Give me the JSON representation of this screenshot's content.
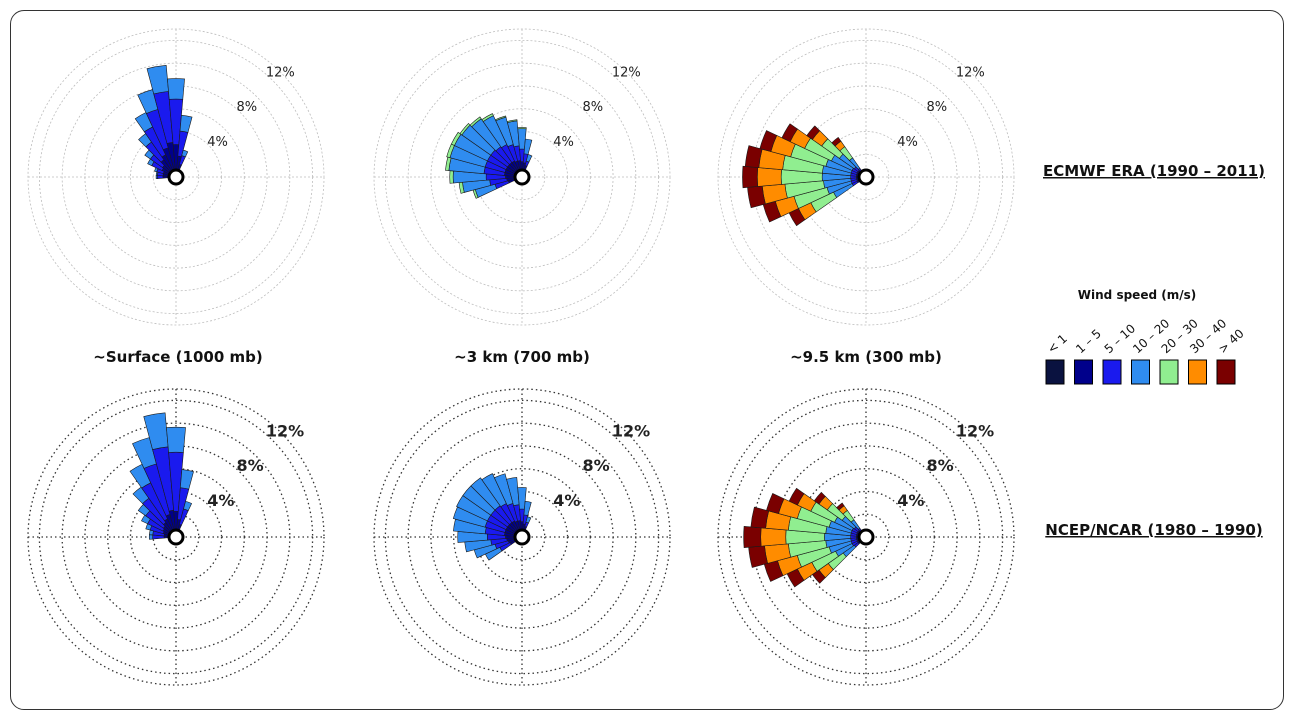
{
  "row_labels": [
    "ECMWF ERA (1990 – 2011)",
    "NCEP/NCAR (1980 – 1990)"
  ],
  "column_titles": [
    "~Surface (1000 mb)",
    "~3 km (700 mb)",
    "~9.5 km (300 mb)"
  ],
  "legend": {
    "title": "Wind speed (m/s)",
    "bins": [
      "< 1",
      "1 – 5",
      "5 – 10",
      "10 – 20",
      "20 – 30",
      "30 – 40",
      "> 40"
    ],
    "colors": [
      "#0a1240",
      "#00008b",
      "#1a1aee",
      "#2f8cf0",
      "#90ee90",
      "#ff8c00",
      "#7a0000"
    ]
  },
  "chart_data": [
    {
      "type": "wind-rose",
      "dataset": "ECMWF ERA (1990 – 2011)",
      "level": "~Surface (1000 mb)",
      "rmax": 13,
      "ring_labels": [
        "4%",
        "8%",
        "12%"
      ],
      "directions_deg": [
        270,
        280,
        290,
        300,
        310,
        320,
        330,
        340,
        350,
        0,
        10,
        20
      ],
      "series": [
        {
          "name": "< 1",
          "values": [
            0.3,
            0.3,
            0.3,
            0.3,
            0.3,
            0.4,
            0.4,
            0.4,
            0.4,
            0.4,
            0.4,
            0.3
          ]
        },
        {
          "name": "1 – 5",
          "values": [
            0.6,
            0.6,
            0.6,
            0.8,
            0.9,
            1.2,
            1.5,
            2.0,
            2.4,
            2.2,
            1.2,
            0.6
          ]
        },
        {
          "name": "5 – 10",
          "values": [
            0.5,
            0.5,
            0.6,
            1.0,
            1.3,
            1.9,
            2.7,
            3.5,
            4.5,
            4.0,
            2.2,
            0.8
          ]
        },
        {
          "name": "10 – 20",
          "values": [
            0.1,
            0.1,
            0.2,
            0.4,
            0.6,
            0.9,
            1.4,
            1.8,
            2.3,
            1.8,
            1.4,
            0.5
          ]
        }
      ]
    },
    {
      "type": "wind-rose",
      "dataset": "ECMWF ERA (1990 – 2011)",
      "level": "~3 km (700 mb)",
      "rmax": 13,
      "ring_labels": [
        "4%",
        "8%",
        "12%"
      ],
      "directions_deg": [
        250,
        260,
        270,
        280,
        290,
        300,
        310,
        320,
        330,
        340,
        350,
        0,
        10,
        20
      ],
      "series": [
        {
          "name": "< 1",
          "values": [
            0.3,
            0.3,
            0.3,
            0.3,
            0.3,
            0.3,
            0.3,
            0.3,
            0.3,
            0.3,
            0.3,
            0.3,
            0.3,
            0.3
          ]
        },
        {
          "name": "1 – 5",
          "values": [
            0.7,
            0.8,
            0.9,
            1.0,
            1.0,
            1.0,
            1.0,
            1.0,
            1.0,
            0.9,
            0.9,
            0.8,
            0.7,
            0.5
          ]
        },
        {
          "name": "5 – 10",
          "values": [
            1.2,
            1.5,
            1.7,
            1.8,
            1.8,
            1.8,
            1.8,
            1.7,
            1.6,
            1.5,
            1.3,
            1.1,
            0.8,
            0.4
          ]
        },
        {
          "name": "10 – 20",
          "values": [
            1.8,
            2.4,
            2.9,
            3.1,
            3.2,
            3.2,
            3.1,
            3.0,
            2.8,
            2.5,
            2.2,
            1.8,
            1.3,
            0.6
          ]
        },
        {
          "name": "20 – 30",
          "values": [
            0.2,
            0.3,
            0.3,
            0.3,
            0.3,
            0.3,
            0.2,
            0.2,
            0.2,
            0.1,
            0.1,
            0.1,
            0.0,
            0.0
          ]
        }
      ]
    },
    {
      "type": "wind-rose",
      "dataset": "ECMWF ERA (1990 – 2011)",
      "level": "~9.5 km (300 mb)",
      "rmax": 13,
      "ring_labels": [
        "4%",
        "8%",
        "12%"
      ],
      "directions_deg": [
        240,
        250,
        260,
        270,
        280,
        290,
        300,
        310,
        320
      ],
      "series": [
        {
          "name": "< 1",
          "values": [
            0.3,
            0.3,
            0.3,
            0.3,
            0.3,
            0.3,
            0.3,
            0.3,
            0.2
          ]
        },
        {
          "name": "1 – 5",
          "values": [
            0.3,
            0.3,
            0.3,
            0.3,
            0.3,
            0.3,
            0.3,
            0.3,
            0.2
          ]
        },
        {
          "name": "5 – 10",
          "values": [
            0.5,
            0.5,
            0.5,
            0.5,
            0.5,
            0.5,
            0.5,
            0.4,
            0.3
          ]
        },
        {
          "name": "10 – 20",
          "values": [
            1.8,
            2.2,
            2.4,
            2.5,
            2.5,
            2.3,
            2.0,
            1.6,
            1.1
          ]
        },
        {
          "name": "20 – 30",
          "values": [
            2.2,
            3.0,
            3.4,
            3.6,
            3.5,
            3.2,
            2.6,
            1.9,
            1.2
          ]
        },
        {
          "name": "30 – 40",
          "values": [
            1.2,
            1.7,
            2.0,
            2.1,
            2.1,
            1.8,
            1.4,
            1.0,
            0.6
          ]
        },
        {
          "name": "> 40",
          "values": [
            0.9,
            1.1,
            1.3,
            1.3,
            1.2,
            1.0,
            0.8,
            0.6,
            0.4
          ]
        }
      ]
    },
    {
      "type": "wind-rose",
      "dataset": "NCEP/NCAR (1980 – 1990)",
      "level": "~Surface (1000 mb)",
      "rmax": 13,
      "ring_labels": [
        "4%",
        "8%",
        "12%"
      ],
      "directions_deg": [
        270,
        280,
        290,
        300,
        310,
        320,
        330,
        340,
        350,
        0,
        10,
        20
      ],
      "series": [
        {
          "name": "< 1",
          "values": [
            0.3,
            0.3,
            0.3,
            0.3,
            0.3,
            0.3,
            0.3,
            0.3,
            0.3,
            0.3,
            0.3,
            0.3
          ]
        },
        {
          "name": "1 – 5",
          "values": [
            0.5,
            0.5,
            0.6,
            0.7,
            0.8,
            1.0,
            1.2,
            1.5,
            1.8,
            1.7,
            1.0,
            0.6
          ]
        },
        {
          "name": "5 – 10",
          "values": [
            1.0,
            1.0,
            1.2,
            1.5,
            1.9,
            2.6,
            3.5,
            4.6,
            5.6,
            5.2,
            2.8,
            1.4
          ]
        },
        {
          "name": "10 – 20",
          "values": [
            0.3,
            0.3,
            0.4,
            0.6,
            0.8,
            1.2,
            1.8,
            2.4,
            3.0,
            2.2,
            1.6,
            0.7
          ]
        }
      ]
    },
    {
      "type": "wind-rose",
      "dataset": "NCEP/NCAR (1980 – 1990)",
      "level": "~3 km (700 mb)",
      "rmax": 13,
      "ring_labels": [
        "4%",
        "8%",
        "12%"
      ],
      "directions_deg": [
        240,
        250,
        260,
        270,
        280,
        290,
        300,
        310,
        320,
        330,
        340,
        350,
        0,
        10,
        20
      ],
      "series": [
        {
          "name": "< 1",
          "values": [
            0.3,
            0.3,
            0.3,
            0.3,
            0.3,
            0.3,
            0.3,
            0.3,
            0.3,
            0.3,
            0.3,
            0.3,
            0.3,
            0.3,
            0.3
          ]
        },
        {
          "name": "1 – 5",
          "values": [
            0.6,
            0.7,
            0.8,
            0.9,
            1.0,
            1.0,
            1.0,
            1.0,
            1.0,
            1.0,
            0.9,
            0.9,
            0.8,
            0.6,
            0.4
          ]
        },
        {
          "name": "5 – 10",
          "values": [
            1.0,
            1.2,
            1.4,
            1.6,
            1.7,
            1.8,
            1.8,
            1.8,
            1.8,
            1.7,
            1.6,
            1.4,
            1.1,
            0.8,
            0.4
          ]
        },
        {
          "name": "10 – 20",
          "values": [
            1.4,
            1.9,
            2.3,
            2.6,
            2.8,
            2.9,
            3.0,
            3.0,
            3.0,
            2.9,
            2.7,
            2.4,
            1.9,
            1.2,
            0.5
          ]
        }
      ]
    },
    {
      "type": "wind-rose",
      "dataset": "NCEP/NCAR (1980 – 1990)",
      "level": "~9.5 km (300 mb)",
      "rmax": 13,
      "ring_labels": [
        "4%",
        "8%",
        "12%"
      ],
      "directions_deg": [
        230,
        240,
        250,
        260,
        270,
        280,
        290,
        300,
        310,
        320
      ],
      "series": [
        {
          "name": "< 1",
          "values": [
            0.3,
            0.3,
            0.3,
            0.3,
            0.3,
            0.3,
            0.3,
            0.3,
            0.3,
            0.2
          ]
        },
        {
          "name": "1 – 5",
          "values": [
            0.3,
            0.3,
            0.3,
            0.3,
            0.3,
            0.3,
            0.3,
            0.3,
            0.3,
            0.2
          ]
        },
        {
          "name": "5 – 10",
          "values": [
            0.4,
            0.5,
            0.5,
            0.5,
            0.5,
            0.5,
            0.5,
            0.5,
            0.4,
            0.3
          ]
        },
        {
          "name": "10 – 20",
          "values": [
            1.2,
            1.6,
            2.0,
            2.2,
            2.3,
            2.2,
            2.0,
            1.7,
            1.3,
            0.9
          ]
        },
        {
          "name": "20 – 30",
          "values": [
            1.6,
            2.3,
            2.9,
            3.3,
            3.4,
            3.3,
            2.9,
            2.3,
            1.6,
            1.0
          ]
        },
        {
          "name": "30 – 40",
          "values": [
            1.0,
            1.4,
            1.8,
            2.1,
            2.2,
            2.0,
            1.7,
            1.3,
            0.9,
            0.5
          ]
        },
        {
          "name": "> 40",
          "values": [
            0.7,
            1.0,
            1.2,
            1.4,
            1.5,
            1.3,
            1.1,
            0.8,
            0.5,
            0.3
          ]
        }
      ]
    }
  ]
}
